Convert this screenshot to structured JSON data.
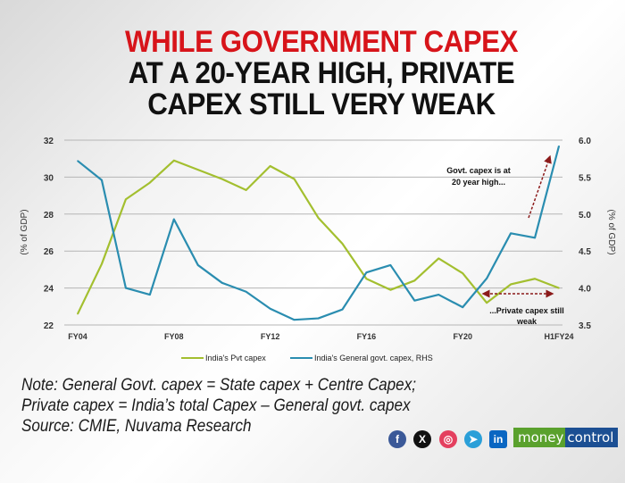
{
  "title": {
    "line1": "WHILE GOVERNMENT CAPEX",
    "line2": "AT A 20-YEAR HIGH, PRIVATE",
    "line3": "CAPEX STILL VERY WEAK"
  },
  "chart_data": {
    "type": "line",
    "x": [
      "FY04",
      "FY05",
      "FY06",
      "FY07",
      "FY08",
      "FY09",
      "FY10",
      "FY11",
      "FY12",
      "FY13",
      "FY14",
      "FY15",
      "FY16",
      "FY17",
      "FY18",
      "FY19",
      "FY20",
      "FY21",
      "FY22",
      "FY23",
      "H1FY24"
    ],
    "x_tick_labels": [
      "FY04",
      "FY08",
      "FY12",
      "FY16",
      "FY20",
      "H1FY24"
    ],
    "ylabel": "(% of GDP)",
    "y2label": "(% of GDP)",
    "ylim": [
      22,
      32
    ],
    "yticks": [
      "22",
      "24",
      "26",
      "28",
      "30",
      "32"
    ],
    "y2lim": [
      3.5,
      6.0
    ],
    "y2ticks": [
      "3.5",
      "4.0",
      "4.5",
      "5.0",
      "5.5",
      "6.0"
    ],
    "grid": true,
    "legend_position": "bottom",
    "series": [
      {
        "name": "India's Pvt capex",
        "axis": "left",
        "color": "#a3bf2f",
        "values": [
          22.6,
          25.3,
          28.8,
          29.7,
          30.9,
          30.4,
          29.9,
          29.3,
          30.6,
          29.9,
          27.8,
          26.4,
          24.5,
          23.9,
          24.4,
          25.6,
          24.8,
          23.2,
          24.2,
          24.5,
          24.0
        ]
      },
      {
        "name": "India's General govt. capex, RHS",
        "axis": "right",
        "color": "#2a8db0",
        "values": [
          5.72,
          5.46,
          4.0,
          3.91,
          4.93,
          4.31,
          4.07,
          3.95,
          3.72,
          3.57,
          3.59,
          3.71,
          4.21,
          4.31,
          3.83,
          3.91,
          3.74,
          4.13,
          4.74,
          4.68,
          5.92
        ]
      }
    ],
    "annotations": [
      {
        "text_line1": "Govt. capex is at",
        "text_line2": "20 year high..."
      },
      {
        "text_line1": "...Private capex still",
        "text_line2": "weak"
      }
    ],
    "annotation_color": "#8b1a1a"
  },
  "notes": [
    "Note: General Govt. capex = State capex + Centre Capex;",
    "Private capex = India’s total Capex – General govt. capex",
    "Source: CMIE, Nuvama Research"
  ],
  "social": {
    "facebook": "f",
    "x": "X",
    "instagram": "◎",
    "telegram": "➤",
    "linkedin": "in"
  },
  "brand": {
    "part1": "money",
    "part2": "control"
  }
}
